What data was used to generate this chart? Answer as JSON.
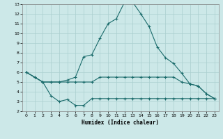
{
  "xlabel": "Humidex (Indice chaleur)",
  "bg_color": "#cce8e8",
  "grid_color": "#aacfcf",
  "line_color": "#1a6b6b",
  "xlim": [
    -0.5,
    23.5
  ],
  "ylim": [
    2,
    13
  ],
  "yticks": [
    2,
    3,
    4,
    5,
    6,
    7,
    8,
    9,
    10,
    11,
    12,
    13
  ],
  "xticks": [
    0,
    1,
    2,
    3,
    4,
    5,
    6,
    7,
    8,
    9,
    10,
    11,
    12,
    13,
    14,
    15,
    16,
    17,
    18,
    19,
    20,
    21,
    22,
    23
  ],
  "line1_x": [
    0,
    1,
    2,
    3,
    4,
    5,
    6,
    7,
    8,
    9,
    10,
    11,
    12,
    13,
    14,
    15,
    16,
    17,
    18,
    19,
    20,
    21,
    22,
    23
  ],
  "line1_y": [
    6.0,
    5.5,
    5.0,
    5.0,
    5.0,
    5.0,
    5.0,
    5.0,
    5.0,
    5.5,
    5.5,
    5.5,
    5.5,
    5.5,
    5.5,
    5.5,
    5.5,
    5.5,
    5.5,
    5.0,
    4.8,
    4.6,
    3.8,
    3.3
  ],
  "line2_x": [
    0,
    1,
    2,
    3,
    4,
    5,
    6,
    7,
    8,
    9,
    10,
    11,
    12,
    13,
    14,
    15,
    16,
    17,
    18,
    19,
    20,
    21,
    22,
    23
  ],
  "line2_y": [
    6.0,
    5.5,
    5.0,
    3.6,
    3.0,
    3.2,
    2.6,
    2.6,
    3.3,
    3.3,
    3.3,
    3.3,
    3.3,
    3.3,
    3.3,
    3.3,
    3.3,
    3.3,
    3.3,
    3.3,
    3.3,
    3.3,
    3.3,
    3.3
  ],
  "line3_x": [
    0,
    1,
    2,
    3,
    4,
    5,
    6,
    7,
    8,
    9,
    10,
    11,
    12,
    13,
    14,
    15,
    16,
    17,
    18,
    19,
    20,
    21,
    22,
    23
  ],
  "line3_y": [
    6.0,
    5.5,
    5.0,
    5.0,
    5.0,
    5.2,
    5.5,
    7.6,
    7.8,
    9.5,
    11.0,
    11.5,
    13.2,
    13.2,
    12.0,
    10.7,
    8.6,
    7.5,
    6.9,
    5.9,
    4.8,
    4.6,
    3.8,
    3.3
  ]
}
